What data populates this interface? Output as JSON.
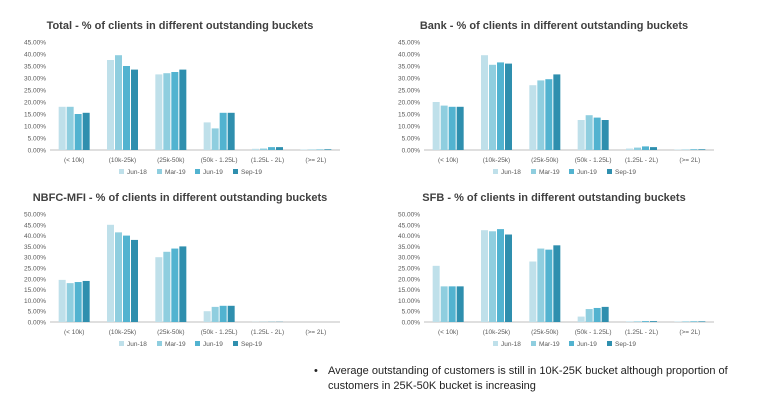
{
  "colors": {
    "series": [
      "#bfe0ea",
      "#8fcedf",
      "#52b3d0",
      "#2f8fae"
    ],
    "axis": "#bfbfbf",
    "grid": "#d9d9d9"
  },
  "chart_data": [
    {
      "type": "bar",
      "title": "Total - % of clients in different outstanding buckets",
      "categories": [
        "(< 10k)",
        "(10k-25k)",
        "(25k-50k)",
        "(50k - 1.25L)",
        "(1.25L - 2L)",
        "(>= 2L)"
      ],
      "ylim": [
        0,
        45
      ],
      "yticks": [
        "0.00%",
        "5.00%",
        "10.00%",
        "15.00%",
        "20.00%",
        "25.00%",
        "30.00%",
        "35.00%",
        "40.00%",
        "45.00%"
      ],
      "legend_position": "bottom",
      "series": [
        {
          "name": "Jun-18",
          "values": [
            18.0,
            37.5,
            31.5,
            11.5,
            0.5,
            0.2
          ]
        },
        {
          "name": "Mar-19",
          "values": [
            18.0,
            39.5,
            32.0,
            9.0,
            0.6,
            0.2
          ]
        },
        {
          "name": "Jun-19",
          "values": [
            15.0,
            35.0,
            32.5,
            15.5,
            1.2,
            0.2
          ]
        },
        {
          "name": "Sep-19",
          "values": [
            15.5,
            33.5,
            33.5,
            15.5,
            1.2,
            0.3
          ]
        }
      ]
    },
    {
      "type": "bar",
      "title": "Bank - % of clients in different outstanding buckets",
      "categories": [
        "(< 10k)",
        "(10k-25k)",
        "(25k-50k)",
        "(50k - 1.25L)",
        "(1.25L - 2L)",
        "(>= 2L)"
      ],
      "ylim": [
        0,
        45
      ],
      "yticks": [
        "0.00%",
        "5.00%",
        "10.00%",
        "15.00%",
        "20.00%",
        "25.00%",
        "30.00%",
        "35.00%",
        "40.00%",
        "45.00%"
      ],
      "legend_position": "bottom",
      "series": [
        {
          "name": "Jun-18",
          "values": [
            20.0,
            39.5,
            27.0,
            12.5,
            0.6,
            0.2
          ]
        },
        {
          "name": "Mar-19",
          "values": [
            18.5,
            35.5,
            29.0,
            14.5,
            1.0,
            0.2
          ]
        },
        {
          "name": "Jun-19",
          "values": [
            18.0,
            36.5,
            29.5,
            13.5,
            1.5,
            0.3
          ]
        },
        {
          "name": "Sep-19",
          "values": [
            18.0,
            36.0,
            31.5,
            12.5,
            1.2,
            0.3
          ]
        }
      ]
    },
    {
      "type": "bar",
      "title": "NBFC-MFI - % of clients in different outstanding buckets",
      "categories": [
        "(< 10k)",
        "(10k-25k)",
        "(25k-50k)",
        "(50k - 1.25L)",
        "(1.25L - 2L)",
        "(>= 2L)"
      ],
      "ylim": [
        0,
        50
      ],
      "yticks": [
        "0.00%",
        "5.00%",
        "10.00%",
        "15.00%",
        "20.00%",
        "25.00%",
        "30.00%",
        "35.00%",
        "40.00%",
        "45.00%",
        "50.00%"
      ],
      "legend_position": "bottom",
      "series": [
        {
          "name": "Jun-18",
          "values": [
            19.5,
            45.0,
            30.0,
            5.0,
            0.1,
            0.0
          ]
        },
        {
          "name": "Mar-19",
          "values": [
            18.0,
            41.5,
            32.5,
            7.0,
            0.1,
            0.0
          ]
        },
        {
          "name": "Jun-19",
          "values": [
            18.5,
            40.0,
            34.0,
            7.5,
            0.1,
            0.0
          ]
        },
        {
          "name": "Sep-19",
          "values": [
            19.0,
            38.0,
            35.0,
            7.5,
            0.1,
            0.0
          ]
        }
      ]
    },
    {
      "type": "bar",
      "title": "SFB - % of clients in different outstanding buckets",
      "categories": [
        "(< 10k)",
        "(10k-25k)",
        "(25k-50k)",
        "(50k - 1.25L)",
        "(1.25L - 2L)",
        "(>= 2L)"
      ],
      "ylim": [
        0,
        50
      ],
      "yticks": [
        "0.00%",
        "5.00%",
        "10.00%",
        "15.00%",
        "20.00%",
        "25.00%",
        "30.00%",
        "35.00%",
        "40.00%",
        "45.00%",
        "50.00%"
      ],
      "legend_position": "bottom",
      "series": [
        {
          "name": "Jun-18",
          "values": [
            26.0,
            42.5,
            28.0,
            2.5,
            0.3,
            0.2
          ]
        },
        {
          "name": "Mar-19",
          "values": [
            16.5,
            42.0,
            34.0,
            6.0,
            0.3,
            0.3
          ]
        },
        {
          "name": "Jun-19",
          "values": [
            16.5,
            43.0,
            33.5,
            6.5,
            0.4,
            0.3
          ]
        },
        {
          "name": "Sep-19",
          "values": [
            16.5,
            40.5,
            35.5,
            7.0,
            0.4,
            0.3
          ]
        }
      ]
    }
  ],
  "bullet": {
    "symbol": "•",
    "text": "Average outstanding of customers is still in 10K-25K bucket although proportion of customers in 25K-50K bucket is increasing"
  }
}
